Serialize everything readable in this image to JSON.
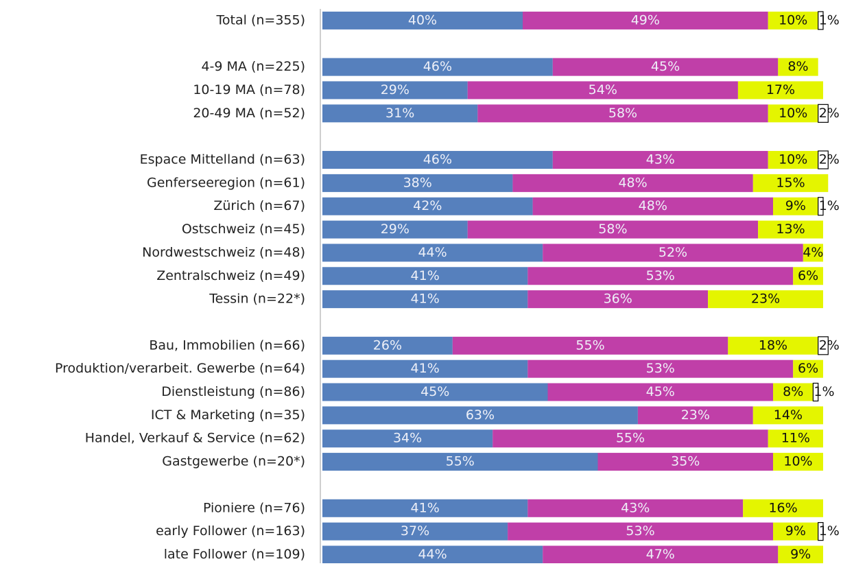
{
  "chart_data": {
    "type": "stacked-barh",
    "categories": [
      "Total (n=355)",
      null,
      "4-9 MA (n=225)",
      "10-19 MA (n=78)",
      "20-49 MA (n=52)",
      null,
      "Espace Mittelland (n=63)",
      "Genferseeregion (n=61)",
      "Zürich (n=67)",
      "Ostschweiz (n=45)",
      "Nordwestschweiz (n=48)",
      "Zentralschweiz (n=49)",
      "Tessin (n=22*)",
      null,
      "Bau, Immobilien (n=66)",
      "Produktion/verarbeit. Gewerbe (n=64)",
      "Dienstleistung (n=86)",
      "ICT & Marketing (n=35)",
      "Handel, Verkauf & Service (n=62)",
      "Gastgewerbe (n=20*)",
      null,
      "Pioniere (n=76)",
      "early Follower (n=163)",
      "late Follower (n=109)"
    ],
    "series": [
      {
        "color": "#5680bd",
        "values": [
          40,
          null,
          46,
          29,
          31,
          null,
          46,
          38,
          42,
          29,
          44,
          41,
          41,
          null,
          26,
          41,
          45,
          63,
          34,
          55,
          null,
          41,
          37,
          44
        ],
        "value_labels": [
          "40%",
          null,
          "46%",
          "29%",
          "31%",
          null,
          "46%",
          "38%",
          "42%",
          "29%",
          "44%",
          "41%",
          "41%",
          null,
          "26%",
          "41%",
          "45%",
          "63%",
          "34%",
          "55%",
          null,
          "41%",
          "37%",
          "44%"
        ]
      },
      {
        "color": "#c03fa8",
        "values": [
          49,
          null,
          45,
          54,
          58,
          null,
          43,
          48,
          48,
          58,
          52,
          53,
          36,
          null,
          55,
          53,
          45,
          23,
          55,
          35,
          null,
          43,
          53,
          47
        ],
        "value_labels": [
          "49%",
          null,
          "45%",
          "54%",
          "58%",
          null,
          "43%",
          "48%",
          "48%",
          "58%",
          "52%",
          "53%",
          "36%",
          null,
          "55%",
          "53%",
          "45%",
          "23%",
          "55%",
          "35%",
          null,
          "43%",
          "53%",
          "47%"
        ]
      },
      {
        "color": "#e4f500",
        "values": [
          10,
          null,
          8,
          17,
          10,
          null,
          10,
          15,
          9,
          13,
          4,
          6,
          23,
          null,
          18,
          6,
          8,
          14,
          11,
          10,
          null,
          16,
          9,
          9
        ],
        "value_labels": [
          "10%",
          null,
          "8%",
          "17%",
          "10%",
          null,
          "10%",
          "15%",
          "9%",
          "13%",
          "4%",
          "6%",
          "23%",
          null,
          "18%",
          "6%",
          "8%",
          "14%",
          "11%",
          "10%",
          null,
          "16%",
          "9%",
          "9%"
        ]
      },
      {
        "color": "#ffffff",
        "values": [
          1,
          null,
          null,
          null,
          2,
          null,
          2,
          null,
          1,
          null,
          null,
          null,
          null,
          null,
          2,
          null,
          1,
          null,
          null,
          null,
          null,
          null,
          1,
          null
        ],
        "value_labels": [
          "1%",
          null,
          null,
          null,
          "2%",
          null,
          "2%",
          null,
          "1%",
          null,
          null,
          null,
          null,
          null,
          "2%",
          null,
          "1%",
          null,
          null,
          null,
          null,
          null,
          "1%",
          null
        ]
      }
    ],
    "xlim": [
      0,
      100
    ]
  }
}
